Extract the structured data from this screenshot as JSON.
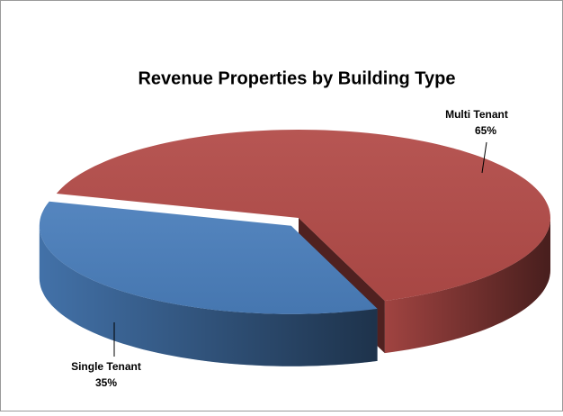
{
  "chart_data": {
    "type": "pie3d",
    "title": "Revenue Properties by Building Type",
    "categories": [
      "Single Tenant",
      "Multi Tenant"
    ],
    "values": [
      35,
      65
    ],
    "value_labels": [
      "35%",
      "65%"
    ],
    "colors": [
      "#4a7ebb",
      "#b24b48"
    ]
  }
}
